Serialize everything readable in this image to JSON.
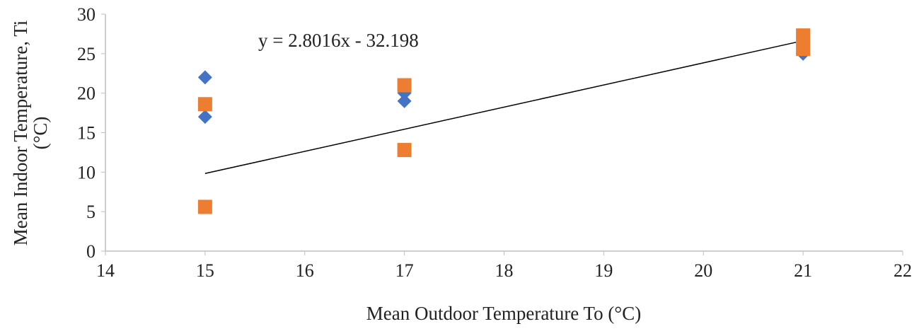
{
  "chart_data": {
    "type": "scatter",
    "title": "",
    "xlabel": "Mean Outdoor Temperature To (°C)",
    "ylabel": [
      "Mean Indoor Temperature, Ti",
      "(°C)"
    ],
    "xlim": [
      14,
      22
    ],
    "ylim": [
      0,
      30
    ],
    "xticks": [
      14,
      15,
      16,
      17,
      18,
      19,
      20,
      21,
      22
    ],
    "yticks": [
      0,
      5,
      10,
      15,
      20,
      25,
      30
    ],
    "grid": false,
    "series": [
      {
        "marker": "diamond",
        "color": "#4472C4",
        "points": [
          [
            15,
            22
          ],
          [
            15,
            17
          ],
          [
            17,
            20
          ],
          [
            17,
            19
          ],
          [
            21,
            26
          ],
          [
            21,
            25
          ]
        ]
      },
      {
        "marker": "square",
        "color": "#ED7D31",
        "points": [
          [
            15,
            18.6
          ],
          [
            15,
            5.6
          ],
          [
            17,
            21
          ],
          [
            17,
            12.8
          ],
          [
            21,
            27.3
          ],
          [
            21,
            25.6
          ]
        ]
      }
    ],
    "trendline": {
      "slope": 2.8016,
      "intercept": -32.198,
      "x_range": [
        15,
        21
      ],
      "color": "#000000",
      "equation": "y = 2.8016x - 32.198"
    }
  }
}
